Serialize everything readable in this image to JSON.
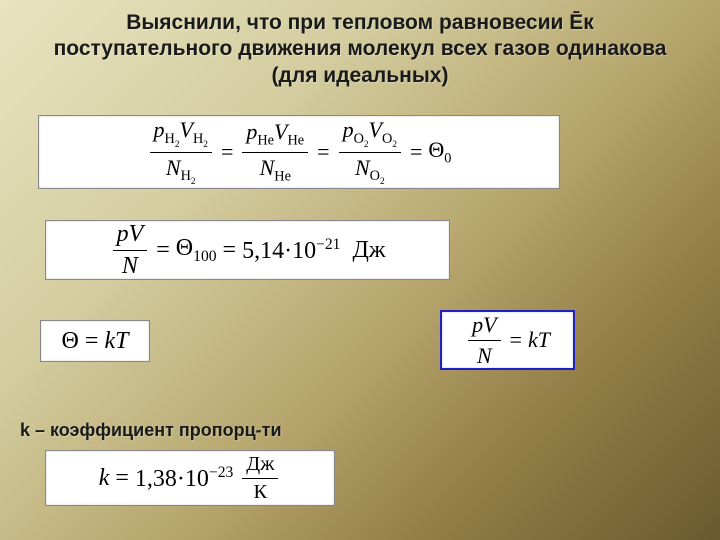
{
  "title": "Выяснили, что при тепловом равновесии Ēк поступательного движения молекул всех газов одинакова (для идеальных)",
  "caption_k": "k – коэффициент пропорц-ти",
  "formula1": {
    "gas1": "H",
    "gas1sub": "2",
    "gas2": "He",
    "gas3": "O",
    "gas3sub": "2",
    "rhs": "Θ",
    "rhs_sub": "0"
  },
  "formula2": {
    "lhs_num": "pV",
    "lhs_den": "N",
    "theta": "Θ",
    "theta_sub": "100",
    "value": "5,14·10",
    "exp": "−21",
    "unit": "Дж"
  },
  "formula3": {
    "lhs": "Θ",
    "rhs": "kT"
  },
  "formula4": {
    "num": "pV",
    "den": "N",
    "rhs": "kT"
  },
  "formula5": {
    "k": "k",
    "value": "1,38·10",
    "exp": "−23",
    "unit_num": "Дж",
    "unit_den": "К"
  },
  "colors": {
    "box_border": "#2020c0",
    "bg_grad_start": "#e8e4c0",
    "bg_grad_end": "#6b5a2e"
  }
}
